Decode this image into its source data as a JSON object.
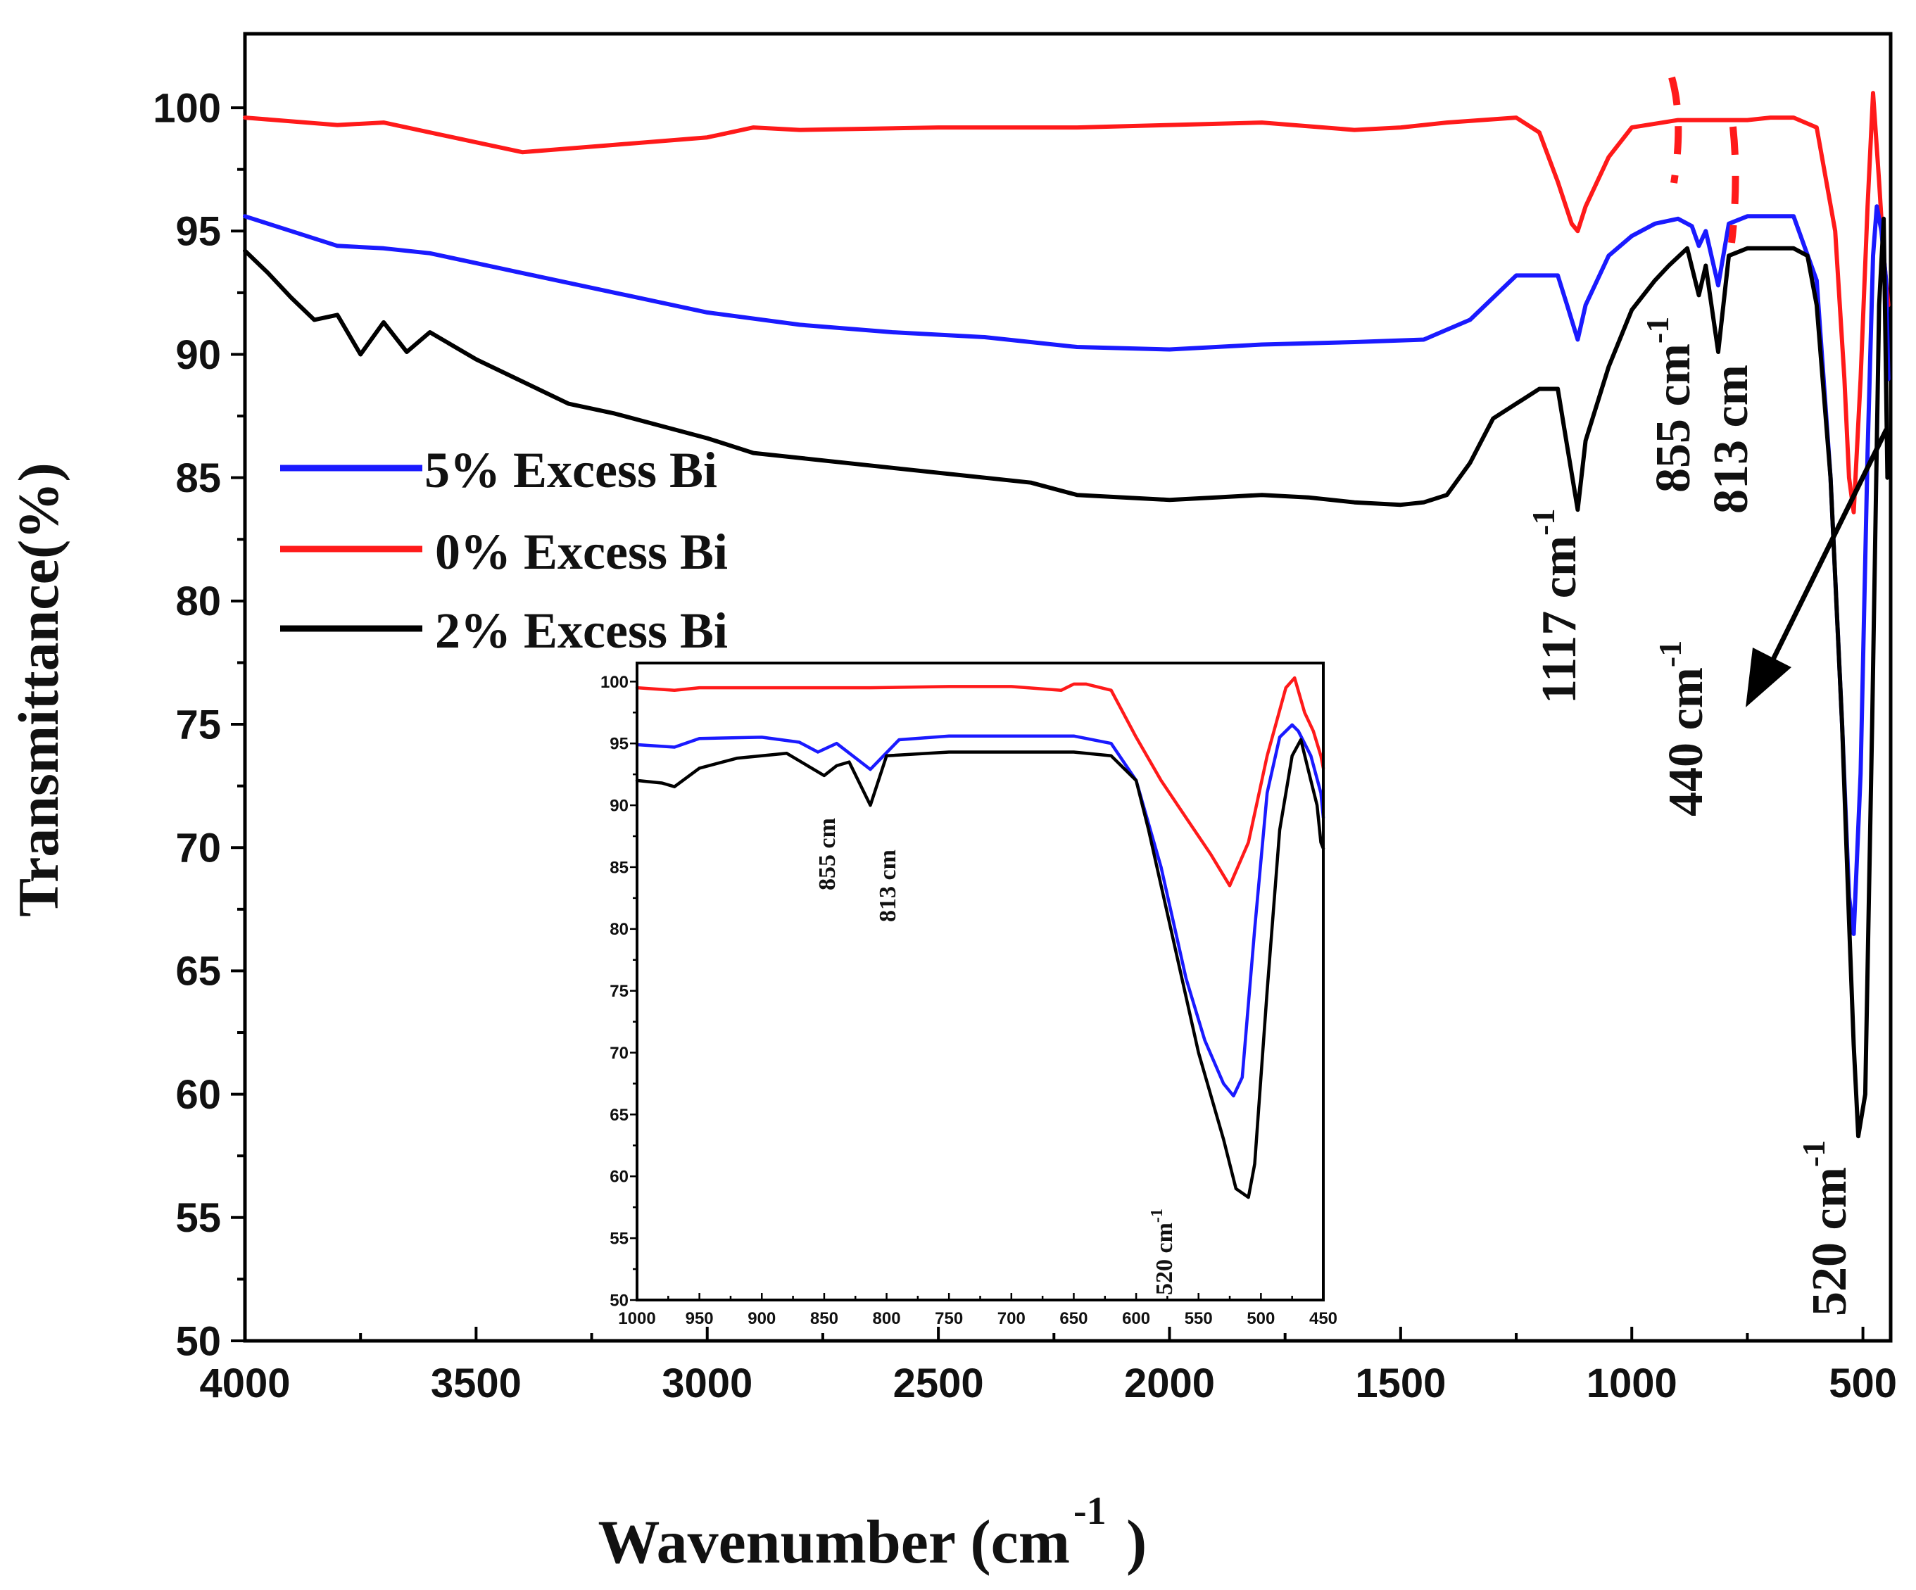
{
  "chart_data": [
    {
      "type": "line",
      "role": "main",
      "xlabel": "Wavenumber (cm",
      "xlabel_sup": "-1",
      "xlabel_end": ")",
      "ylabel": "Transmittance(%)",
      "xlim": [
        4000,
        440
      ],
      "ylim": [
        50,
        103
      ],
      "x_ticks": [
        4000,
        3500,
        3000,
        2500,
        2000,
        1500,
        1000,
        500
      ],
      "y_ticks": [
        50,
        55,
        60,
        65,
        70,
        75,
        80,
        85,
        90,
        95,
        100
      ],
      "legend": [
        {
          "label": "5% Excess Bi",
          "color": "#1a1aff"
        },
        {
          "label": "0% Excess Bi",
          "color": "#ff1a1a"
        },
        {
          "label": "2% Excess Bi",
          "color": "#000000"
        }
      ],
      "series": [
        {
          "name": "0% Excess Bi",
          "color": "#ff1a1a",
          "x": [
            4000,
            3800,
            3700,
            3500,
            3400,
            3200,
            3000,
            2900,
            2800,
            2500,
            2200,
            2000,
            1800,
            1600,
            1500,
            1400,
            1250,
            1200,
            1160,
            1130,
            1117,
            1100,
            1050,
            1000,
            900,
            855,
            813,
            750,
            700,
            650,
            600,
            560,
            540,
            530,
            520,
            505,
            490,
            478,
            465,
            455,
            445
          ],
          "y": [
            99.6,
            99.3,
            99.4,
            98.6,
            98.2,
            98.5,
            98.8,
            99.2,
            99.1,
            99.2,
            99.2,
            99.3,
            99.4,
            99.1,
            99.2,
            99.4,
            99.6,
            99.0,
            97.0,
            95.3,
            95.0,
            96.0,
            98.0,
            99.2,
            99.5,
            99.5,
            99.5,
            99.5,
            99.6,
            99.6,
            99.2,
            95.0,
            89.0,
            85.0,
            83.6,
            89.0,
            96.0,
            100.6,
            97.0,
            94.0,
            92.0
          ]
        },
        {
          "name": "5% Excess Bi",
          "color": "#1a1aff",
          "x": [
            4000,
            3900,
            3800,
            3700,
            3600,
            3400,
            3200,
            3000,
            2800,
            2600,
            2400,
            2200,
            2000,
            1800,
            1600,
            1450,
            1350,
            1250,
            1160,
            1140,
            1117,
            1100,
            1050,
            1000,
            950,
            900,
            870,
            855,
            840,
            813,
            790,
            750,
            700,
            650,
            600,
            570,
            545,
            530,
            520,
            505,
            490,
            478,
            470,
            460,
            450,
            445
          ],
          "y": [
            95.6,
            95.0,
            94.4,
            94.3,
            94.1,
            93.3,
            92.5,
            91.7,
            91.2,
            90.9,
            90.7,
            90.3,
            90.2,
            90.4,
            90.5,
            90.6,
            91.4,
            93.2,
            93.2,
            92.0,
            90.6,
            92.0,
            94.0,
            94.8,
            95.3,
            95.5,
            95.2,
            94.4,
            95.0,
            92.8,
            95.3,
            95.6,
            95.6,
            95.6,
            93.0,
            85.0,
            75.0,
            68.0,
            66.5,
            73.0,
            86.0,
            94.0,
            96.0,
            95.0,
            93.0,
            89.0
          ]
        },
        {
          "name": "2% Excess Bi",
          "color": "#000000",
          "x": [
            4000,
            3950,
            3900,
            3850,
            3800,
            3750,
            3700,
            3650,
            3600,
            3500,
            3400,
            3300,
            3200,
            3000,
            2900,
            2800,
            2600,
            2400,
            2300,
            2200,
            2100,
            2000,
            1900,
            1800,
            1700,
            1600,
            1500,
            1450,
            1400,
            1350,
            1300,
            1200,
            1160,
            1140,
            1117,
            1100,
            1050,
            1000,
            950,
            920,
            880,
            855,
            840,
            813,
            790,
            750,
            700,
            650,
            620,
            600,
            570,
            545,
            530,
            520,
            510,
            495,
            480,
            465,
            455,
            447
          ],
          "y": [
            94.2,
            93.3,
            92.3,
            91.4,
            91.6,
            90.0,
            91.3,
            90.1,
            90.9,
            89.8,
            88.9,
            88.0,
            87.6,
            86.6,
            86.0,
            85.8,
            85.4,
            85.0,
            84.8,
            84.3,
            84.2,
            84.1,
            84.2,
            84.3,
            84.2,
            84.0,
            83.9,
            84.0,
            84.3,
            85.6,
            87.4,
            88.6,
            88.6,
            86.3,
            83.7,
            86.5,
            89.5,
            91.8,
            93.0,
            93.6,
            94.3,
            92.4,
            93.6,
            90.1,
            94.0,
            94.3,
            94.3,
            94.3,
            94.0,
            92.0,
            85.0,
            75.0,
            67.0,
            62.0,
            58.3,
            60.0,
            75.0,
            92.0,
            95.5,
            85.0
          ]
        }
      ],
      "annotations": [
        {
          "text": "1117 cm",
          "sup": "-1",
          "rotate": -90
        },
        {
          "text": "855 cm",
          "sup": "-1",
          "rotate": -90
        },
        {
          "text": "813 cm",
          "sup": "",
          "rotate": -90
        },
        {
          "text": "440 cm",
          "sup": "-1",
          "rotate": -90
        },
        {
          "text": "520 cm",
          "sup": "-1",
          "rotate": -90
        }
      ]
    },
    {
      "type": "line",
      "role": "inset",
      "xlim": [
        1000,
        450
      ],
      "ylim": [
        50,
        101.5
      ],
      "x_ticks": [
        1000,
        950,
        900,
        850,
        800,
        750,
        700,
        650,
        600,
        550,
        500,
        450
      ],
      "y_ticks": [
        50,
        55,
        60,
        65,
        70,
        75,
        80,
        85,
        90,
        95,
        100
      ],
      "series": [
        {
          "name": "0% Excess Bi",
          "color": "#ff1a1a",
          "x": [
            1000,
            970,
            950,
            900,
            855,
            813,
            750,
            700,
            660,
            650,
            640,
            620,
            600,
            580,
            560,
            540,
            525,
            510,
            495,
            480,
            473,
            465,
            458,
            452,
            450
          ],
          "y": [
            99.5,
            99.3,
            99.5,
            99.5,
            99.5,
            99.5,
            99.6,
            99.6,
            99.3,
            99.8,
            99.8,
            99.3,
            95.5,
            92.0,
            89.0,
            86.0,
            83.5,
            87.0,
            94.0,
            99.5,
            100.3,
            97.5,
            96.0,
            94.0,
            93.0
          ]
        },
        {
          "name": "5% Excess Bi",
          "color": "#1a1aff",
          "x": [
            1000,
            970,
            950,
            900,
            870,
            855,
            840,
            813,
            790,
            750,
            700,
            650,
            620,
            600,
            580,
            560,
            545,
            530,
            522,
            515,
            505,
            495,
            485,
            475,
            470,
            460,
            452,
            450
          ],
          "y": [
            94.9,
            94.7,
            95.4,
            95.5,
            95.1,
            94.3,
            95.0,
            92.9,
            95.3,
            95.6,
            95.6,
            95.6,
            95.0,
            92.0,
            85.0,
            76.0,
            71.0,
            67.5,
            66.5,
            68.0,
            80.0,
            91.0,
            95.5,
            96.5,
            96.0,
            94.0,
            91.0,
            89.0
          ]
        },
        {
          "name": "2% Excess Bi",
          "color": "#000000",
          "x": [
            1000,
            980,
            970,
            950,
            920,
            880,
            860,
            850,
            840,
            830,
            813,
            800,
            750,
            700,
            650,
            620,
            600,
            590,
            570,
            550,
            530,
            520,
            510,
            505,
            495,
            485,
            475,
            468,
            460,
            455,
            452,
            450
          ],
          "y": [
            92.0,
            91.8,
            91.5,
            93.0,
            93.8,
            94.2,
            93.0,
            92.4,
            93.2,
            93.5,
            90.0,
            94.0,
            94.3,
            94.3,
            94.3,
            94.0,
            92.0,
            88.0,
            79.0,
            70.0,
            63.0,
            59.0,
            58.3,
            61.0,
            75.0,
            88.0,
            94.0,
            95.3,
            92.0,
            90.0,
            87.0,
            86.5
          ]
        }
      ],
      "annotations": [
        {
          "text": "855 cm",
          "rotate": -90
        },
        {
          "text": "813 cm",
          "rotate": -90
        },
        {
          "text": "520 cm",
          "sup": "-1",
          "rotate": -90
        }
      ]
    }
  ]
}
